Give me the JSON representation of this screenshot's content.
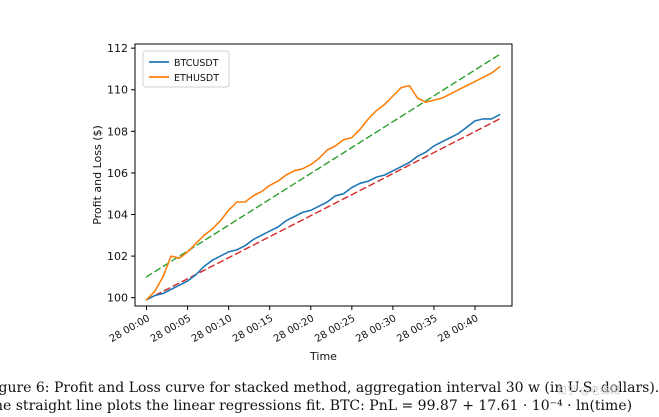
{
  "chart_data": {
    "type": "line",
    "xlabel": "Time",
    "ylabel": "Profit and Loss ($)",
    "ylim": [
      99.6,
      112.2
    ],
    "yticks": [
      100,
      102,
      104,
      106,
      108,
      110,
      112
    ],
    "xticks": [
      "28 00:00",
      "28 00:05",
      "28 00:10",
      "28 00:15",
      "28 00:20",
      "28 00:25",
      "28 00:30",
      "28 00:35",
      "28 00:40"
    ],
    "xlim_minutes": [
      -1.4,
      44.5
    ],
    "legend_position": "top-left",
    "grid": false,
    "series": [
      {
        "name": "BTCUSDT",
        "color": "#1f77b4",
        "x": [
          0,
          1,
          2,
          3,
          4,
          5,
          6,
          7,
          8,
          9,
          10,
          11,
          12,
          13,
          14,
          15,
          16,
          17,
          18,
          19,
          20,
          21,
          22,
          23,
          24,
          25,
          26,
          27,
          28,
          29,
          30,
          31,
          32,
          33,
          34,
          35,
          36,
          37,
          38,
          39,
          40,
          41,
          42,
          43
        ],
        "values": [
          99.9,
          100.1,
          100.2,
          100.4,
          100.6,
          100.8,
          101.1,
          101.5,
          101.8,
          102.0,
          102.2,
          102.3,
          102.5,
          102.8,
          103.0,
          103.2,
          103.4,
          103.7,
          103.9,
          104.1,
          104.2,
          104.4,
          104.6,
          104.9,
          105.0,
          105.3,
          105.5,
          105.6,
          105.8,
          105.9,
          106.1,
          106.3,
          106.5,
          106.8,
          107.0,
          107.3,
          107.5,
          107.7,
          107.9,
          108.2,
          108.5,
          108.6,
          108.6,
          108.8
        ]
      },
      {
        "name": "ETHUSDT",
        "color": "#ff7f0e",
        "x": [
          0,
          1,
          2,
          3,
          4,
          5,
          6,
          7,
          8,
          9,
          10,
          11,
          12,
          13,
          14,
          15,
          16,
          17,
          18,
          19,
          20,
          21,
          22,
          23,
          24,
          25,
          26,
          27,
          28,
          29,
          30,
          31,
          32,
          33,
          34,
          35,
          36,
          37,
          38,
          39,
          40,
          41,
          42,
          43
        ],
        "values": [
          99.9,
          100.3,
          101.0,
          102.0,
          101.9,
          102.2,
          102.6,
          103.0,
          103.3,
          103.7,
          104.2,
          104.6,
          104.6,
          104.9,
          105.1,
          105.4,
          105.6,
          105.9,
          106.1,
          106.2,
          106.4,
          106.7,
          107.1,
          107.3,
          107.6,
          107.7,
          108.1,
          108.6,
          109.0,
          109.3,
          109.7,
          110.1,
          110.2,
          109.6,
          109.4,
          109.5,
          109.6,
          109.8,
          110.0,
          110.2,
          110.4,
          110.6,
          110.8,
          111.1
        ]
      },
      {
        "name": "",
        "color": "#2ca02c",
        "dashed": true,
        "x": [
          0,
          43
        ],
        "values": [
          101.0,
          111.7
        ]
      },
      {
        "name": "",
        "color": "#d62728",
        "dashed": true,
        "x": [
          0,
          43
        ],
        "values": [
          99.9,
          108.6
        ]
      }
    ]
  },
  "caption": {
    "line1": "igure 6: Profit and Loss curve for stacked method, aggregation interval 30 w (in U.S. dollars).",
    "line2": "he straight line plots the linear regressions fit. BTC: PnL = 99.87 + 17.61 · 10⁻⁴ · ln(time)"
  },
  "watermark": "知乎 @老编辑"
}
